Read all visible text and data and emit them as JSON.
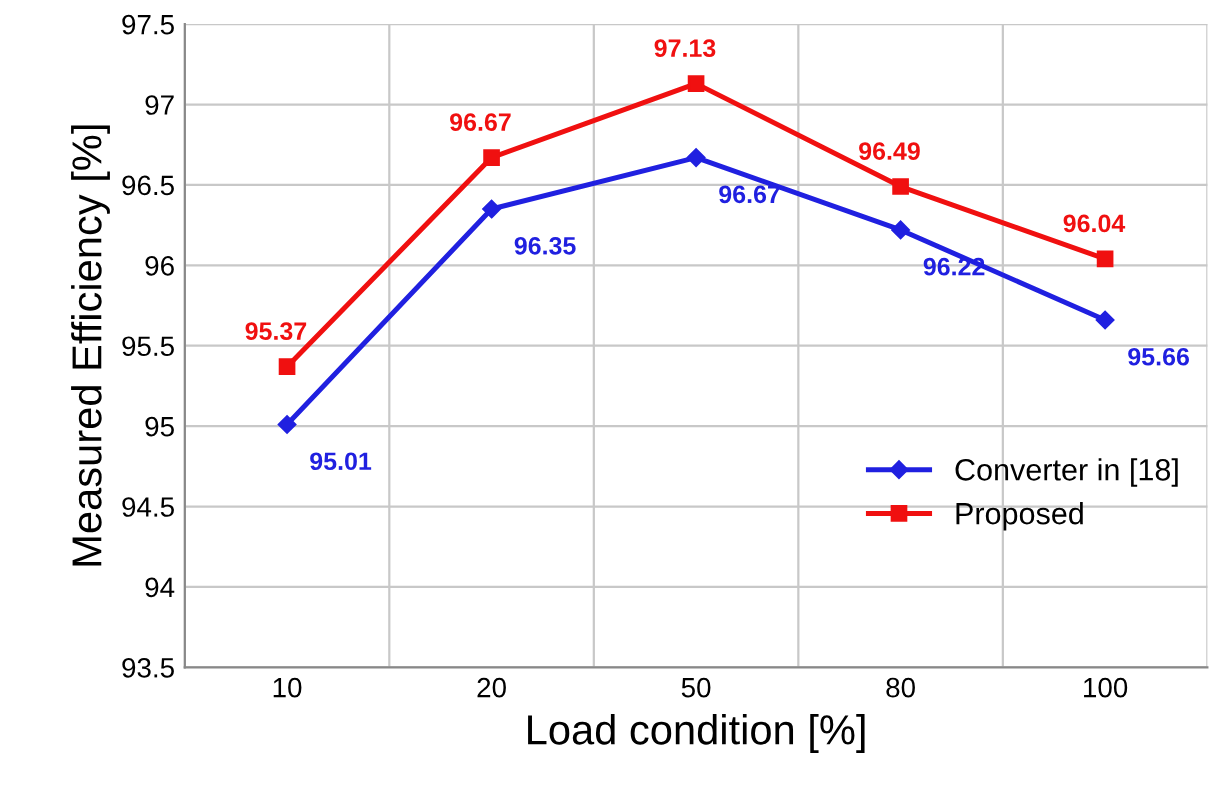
{
  "chart_data": {
    "type": "line",
    "xlabel": "Load condition [%]",
    "ylabel": "Measured Efficiency [%]",
    "categories": [
      "10",
      "20",
      "50",
      "80",
      "100"
    ],
    "series": [
      {
        "name": "Converter in [18]",
        "color": "#2020e0",
        "marker": "diamond",
        "values": [
          95.01,
          96.35,
          96.67,
          96.22,
          95.66
        ]
      },
      {
        "name": "Proposed",
        "color": "#f01010",
        "marker": "square",
        "values": [
          95.37,
          96.67,
          97.13,
          96.49,
          96.04
        ]
      }
    ],
    "ylim": [
      93.5,
      97.5
    ],
    "yticks": [
      93.5,
      94,
      94.5,
      95,
      95.5,
      96,
      96.5,
      97,
      97.5
    ],
    "grid": true,
    "legend": "bottom right",
    "data_labels": true,
    "line_style": "solid"
  }
}
